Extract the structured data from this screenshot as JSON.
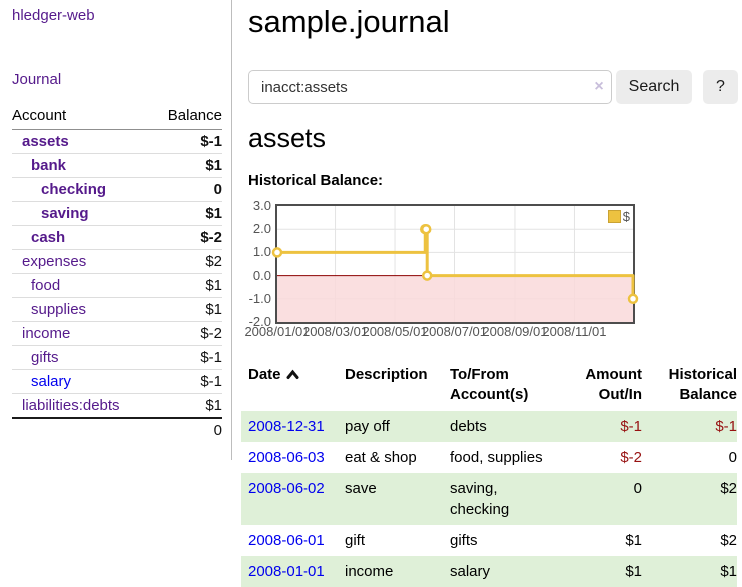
{
  "app": {
    "title": "hledger-web"
  },
  "colors": {
    "link_purple": "#551a8b",
    "link_blue": "#0000ee",
    "negative_strong": "#971111",
    "negative_soft": "#c06a6a",
    "row_highlight_green": "#dff0d8",
    "chart_series_yellow": "#edc240",
    "chart_negative_fill": "#f9d9db",
    "chart_zero_line": "#8b0000"
  },
  "sidebar": {
    "journal_link": "Journal",
    "accounts": {
      "header": {
        "account": "Account",
        "balance": "Balance"
      },
      "rows": [
        {
          "name": "assets",
          "balance": "$-1",
          "indent": 1,
          "bold": true,
          "balance_style": "neg",
          "link_color": "purple"
        },
        {
          "name": "bank",
          "balance": "$1",
          "indent": 2,
          "bold": true,
          "balance_style": "pos",
          "link_color": "purple"
        },
        {
          "name": "checking",
          "balance": "0",
          "indent": 3,
          "bold": true,
          "balance_style": "pos",
          "link_color": "purple"
        },
        {
          "name": "saving",
          "balance": "$1",
          "indent": 3,
          "bold": true,
          "balance_style": "pos",
          "link_color": "purple"
        },
        {
          "name": "cash",
          "balance": "$-2",
          "indent": 2,
          "bold": true,
          "balance_style": "neg",
          "link_color": "purple"
        },
        {
          "name": "expenses",
          "balance": "$2",
          "indent": 1,
          "bold": false,
          "balance_style": "pos",
          "link_color": "purple"
        },
        {
          "name": "food",
          "balance": "$1",
          "indent": 2,
          "bold": false,
          "balance_style": "pos",
          "link_color": "purple"
        },
        {
          "name": "supplies",
          "balance": "$1",
          "indent": 2,
          "bold": false,
          "balance_style": "pos",
          "link_color": "purple"
        },
        {
          "name": "income",
          "balance": "$-2",
          "indent": 1,
          "bold": false,
          "balance_style": "negsoft",
          "link_color": "purple"
        },
        {
          "name": "gifts",
          "balance": "$-1",
          "indent": 2,
          "bold": false,
          "balance_style": "negsoft",
          "link_color": "purple"
        },
        {
          "name": "salary",
          "balance": "$-1",
          "indent": 2,
          "bold": false,
          "balance_style": "negsoft",
          "link_color": "blue"
        },
        {
          "name": "liabilities:debts",
          "balance": "$1",
          "indent": 1,
          "bold": false,
          "balance_style": "pos",
          "link_color": "purple"
        }
      ],
      "total": "0"
    }
  },
  "header": {
    "title": "sample.journal"
  },
  "search": {
    "value": "inacct:assets",
    "clear_icon": "×",
    "button": "Search",
    "help_button": "?"
  },
  "account_page": {
    "heading": "assets",
    "chart_title": "Historical Balance:"
  },
  "chart_data": {
    "type": "line",
    "step": true,
    "title": "Historical Balance",
    "series": [
      {
        "name": "$",
        "color": "#edc240",
        "points": [
          {
            "date": "2008-01-01",
            "value": 1
          },
          {
            "date": "2008-06-01",
            "value": 2
          },
          {
            "date": "2008-06-02",
            "value": 2
          },
          {
            "date": "2008-06-03",
            "value": 0
          },
          {
            "date": "2008-12-31",
            "value": -1
          }
        ]
      }
    ],
    "xmin": "2008-01-01",
    "xmax": "2008-12-31",
    "ylim": [
      -2,
      3
    ],
    "yticks": [
      {
        "value": 3,
        "label": "3.0"
      },
      {
        "value": 2,
        "label": "2.0"
      },
      {
        "value": 1,
        "label": "1.0"
      },
      {
        "value": 0,
        "label": "0.0"
      },
      {
        "value": -1,
        "label": "-1.0"
      },
      {
        "value": -2,
        "label": "-2.0"
      }
    ],
    "xticks": [
      {
        "date": "2008-01-01",
        "label": "2008/01/01"
      },
      {
        "date": "2008-03-01",
        "label": "2008/03/01"
      },
      {
        "date": "2008-05-01",
        "label": "2008/05/01"
      },
      {
        "date": "2008-07-01",
        "label": "2008/07/01"
      },
      {
        "date": "2008-09-01",
        "label": "2008/09/01"
      },
      {
        "date": "2008-11-01",
        "label": "2008/11/01"
      }
    ],
    "legend": {
      "label": "$",
      "position": "top-right"
    },
    "grid": true,
    "negative_region_fill": "#f9d9db",
    "zero_line_color": "#8b0000"
  },
  "register": {
    "columns": [
      {
        "label": "Date",
        "sorted": "asc"
      },
      {
        "label": "Description"
      },
      {
        "label": "To/From Account(s)"
      },
      {
        "label": "Amount Out/In"
      },
      {
        "label": "Historical Balance"
      }
    ],
    "rows": [
      {
        "date": "2008-12-31",
        "description": "pay off",
        "accounts": "debts",
        "amount": "$-1",
        "amount_neg": true,
        "balance": "$-1",
        "balance_neg": true,
        "highlight": true
      },
      {
        "date": "2008-06-03",
        "description": "eat & shop",
        "accounts": "food, supplies",
        "amount": "$-2",
        "amount_neg": true,
        "balance": "0",
        "balance_neg": false,
        "highlight": false
      },
      {
        "date": "2008-06-02",
        "description": "save",
        "accounts": "saving, checking",
        "amount": "0",
        "amount_neg": false,
        "balance": "$2",
        "balance_neg": false,
        "highlight": true
      },
      {
        "date": "2008-06-01",
        "description": "gift",
        "accounts": "gifts",
        "amount": "$1",
        "amount_neg": false,
        "balance": "$2",
        "balance_neg": false,
        "highlight": false
      },
      {
        "date": "2008-01-01",
        "description": "income",
        "accounts": "salary",
        "amount": "$1",
        "amount_neg": false,
        "balance": "$1",
        "balance_neg": false,
        "highlight": true
      }
    ]
  }
}
